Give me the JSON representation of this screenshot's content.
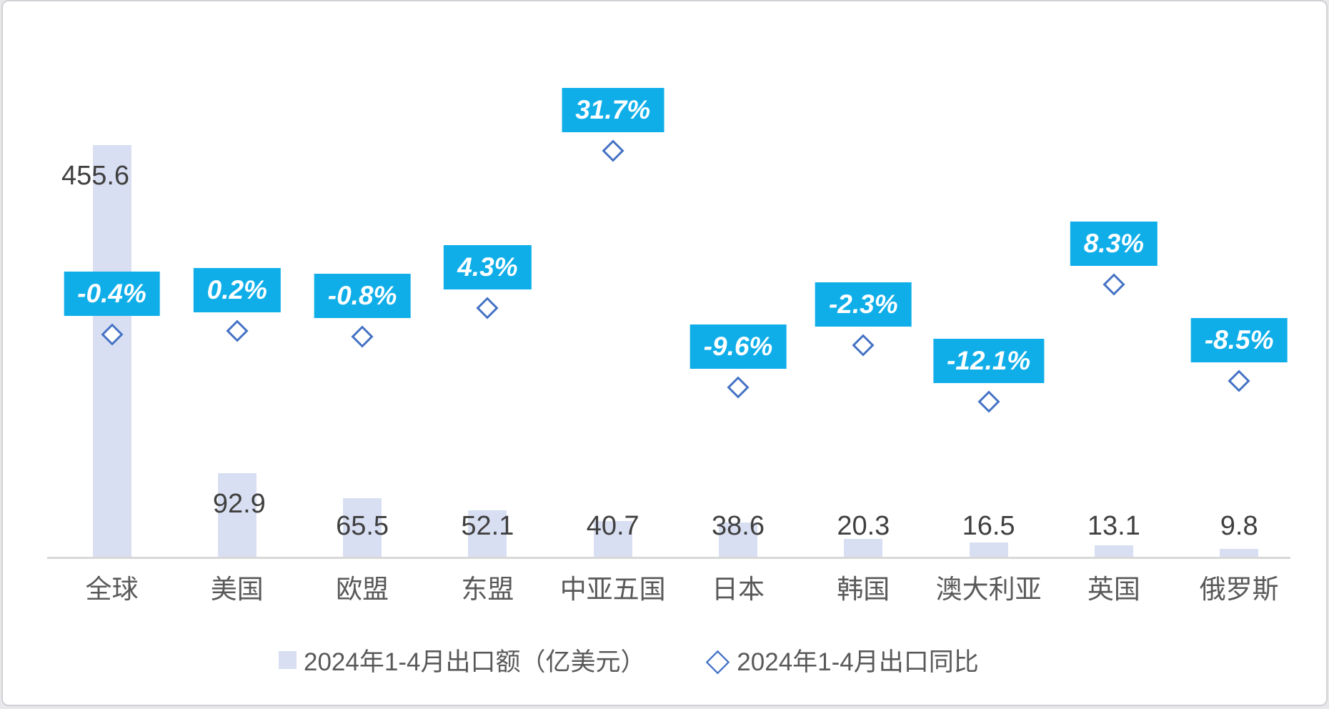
{
  "chart_data": {
    "type": "bar",
    "subtype": "bar-with-scatter-markers-combo",
    "categories": [
      "全球",
      "美国",
      "欧盟",
      "东盟",
      "中亚五国",
      "日本",
      "韩国",
      "澳大利亚",
      "英国",
      "俄罗斯"
    ],
    "series": [
      {
        "name": "2024年1-4月出口额（亿美元）",
        "type": "bar",
        "values": [
          455.6,
          92.9,
          65.5,
          52.1,
          40.7,
          38.6,
          20.3,
          16.5,
          13.1,
          9.8
        ],
        "labels": [
          "455.6",
          "92.9",
          "65.5",
          "52.1",
          "40.7",
          "38.6",
          "20.3",
          "16.5",
          "13.1",
          "9.8"
        ]
      },
      {
        "name": "2024年1-4月出口同比",
        "type": "scatter-diamond",
        "values": [
          -0.4,
          0.2,
          -0.8,
          4.3,
          31.7,
          -9.6,
          -2.3,
          -12.1,
          8.3,
          -8.5
        ],
        "labels": [
          "-0.4%",
          "0.2%",
          "-0.8%",
          "4.3%",
          "31.7%",
          "-9.6%",
          "-2.3%",
          "-12.1%",
          "8.3%",
          "-8.5%"
        ]
      }
    ],
    "title": "",
    "xlabel": "",
    "ylabel": "",
    "grid": false,
    "legend_position": "bottom",
    "axes_visible": {
      "x_line": true,
      "y_ticks": false
    }
  },
  "colors": {
    "bar_fill": "#d9dff2",
    "marker_stroke": "#4472c4",
    "marker_fill": "#ffffff",
    "pct_box_fill": "#0faee9",
    "pct_text": "#ffffff",
    "value_text": "#404040",
    "category_text": "#595959",
    "legend_text": "#595959",
    "axis_line": "#d8d8d8"
  }
}
